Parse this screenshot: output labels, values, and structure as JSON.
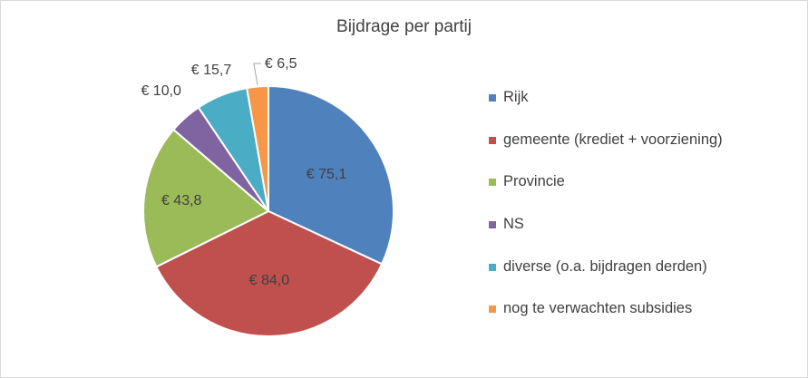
{
  "chart_data": {
    "type": "pie",
    "title": "Bijdrage per partij",
    "categories": [
      "Rijk",
      "gemeente (krediet + voorziening)",
      "Provincie",
      "NS",
      "diverse (o.a. bijdragen derden)",
      "nog te verwachten subsidies"
    ],
    "values": [
      75.1,
      84.0,
      43.8,
      10.0,
      15.7,
      6.5
    ],
    "data_labels": [
      "€ 75,1",
      "€ 84,0",
      "€ 43,8",
      "€ 10,0",
      "€ 15,7",
      "€ 6,5"
    ],
    "colors": [
      "#4f81bd",
      "#c0504d",
      "#9bbb59",
      "#8064a2",
      "#4bacc6",
      "#f79646"
    ],
    "legend_position": "right",
    "start_angle": "12 o'clock",
    "direction": "clockwise"
  }
}
